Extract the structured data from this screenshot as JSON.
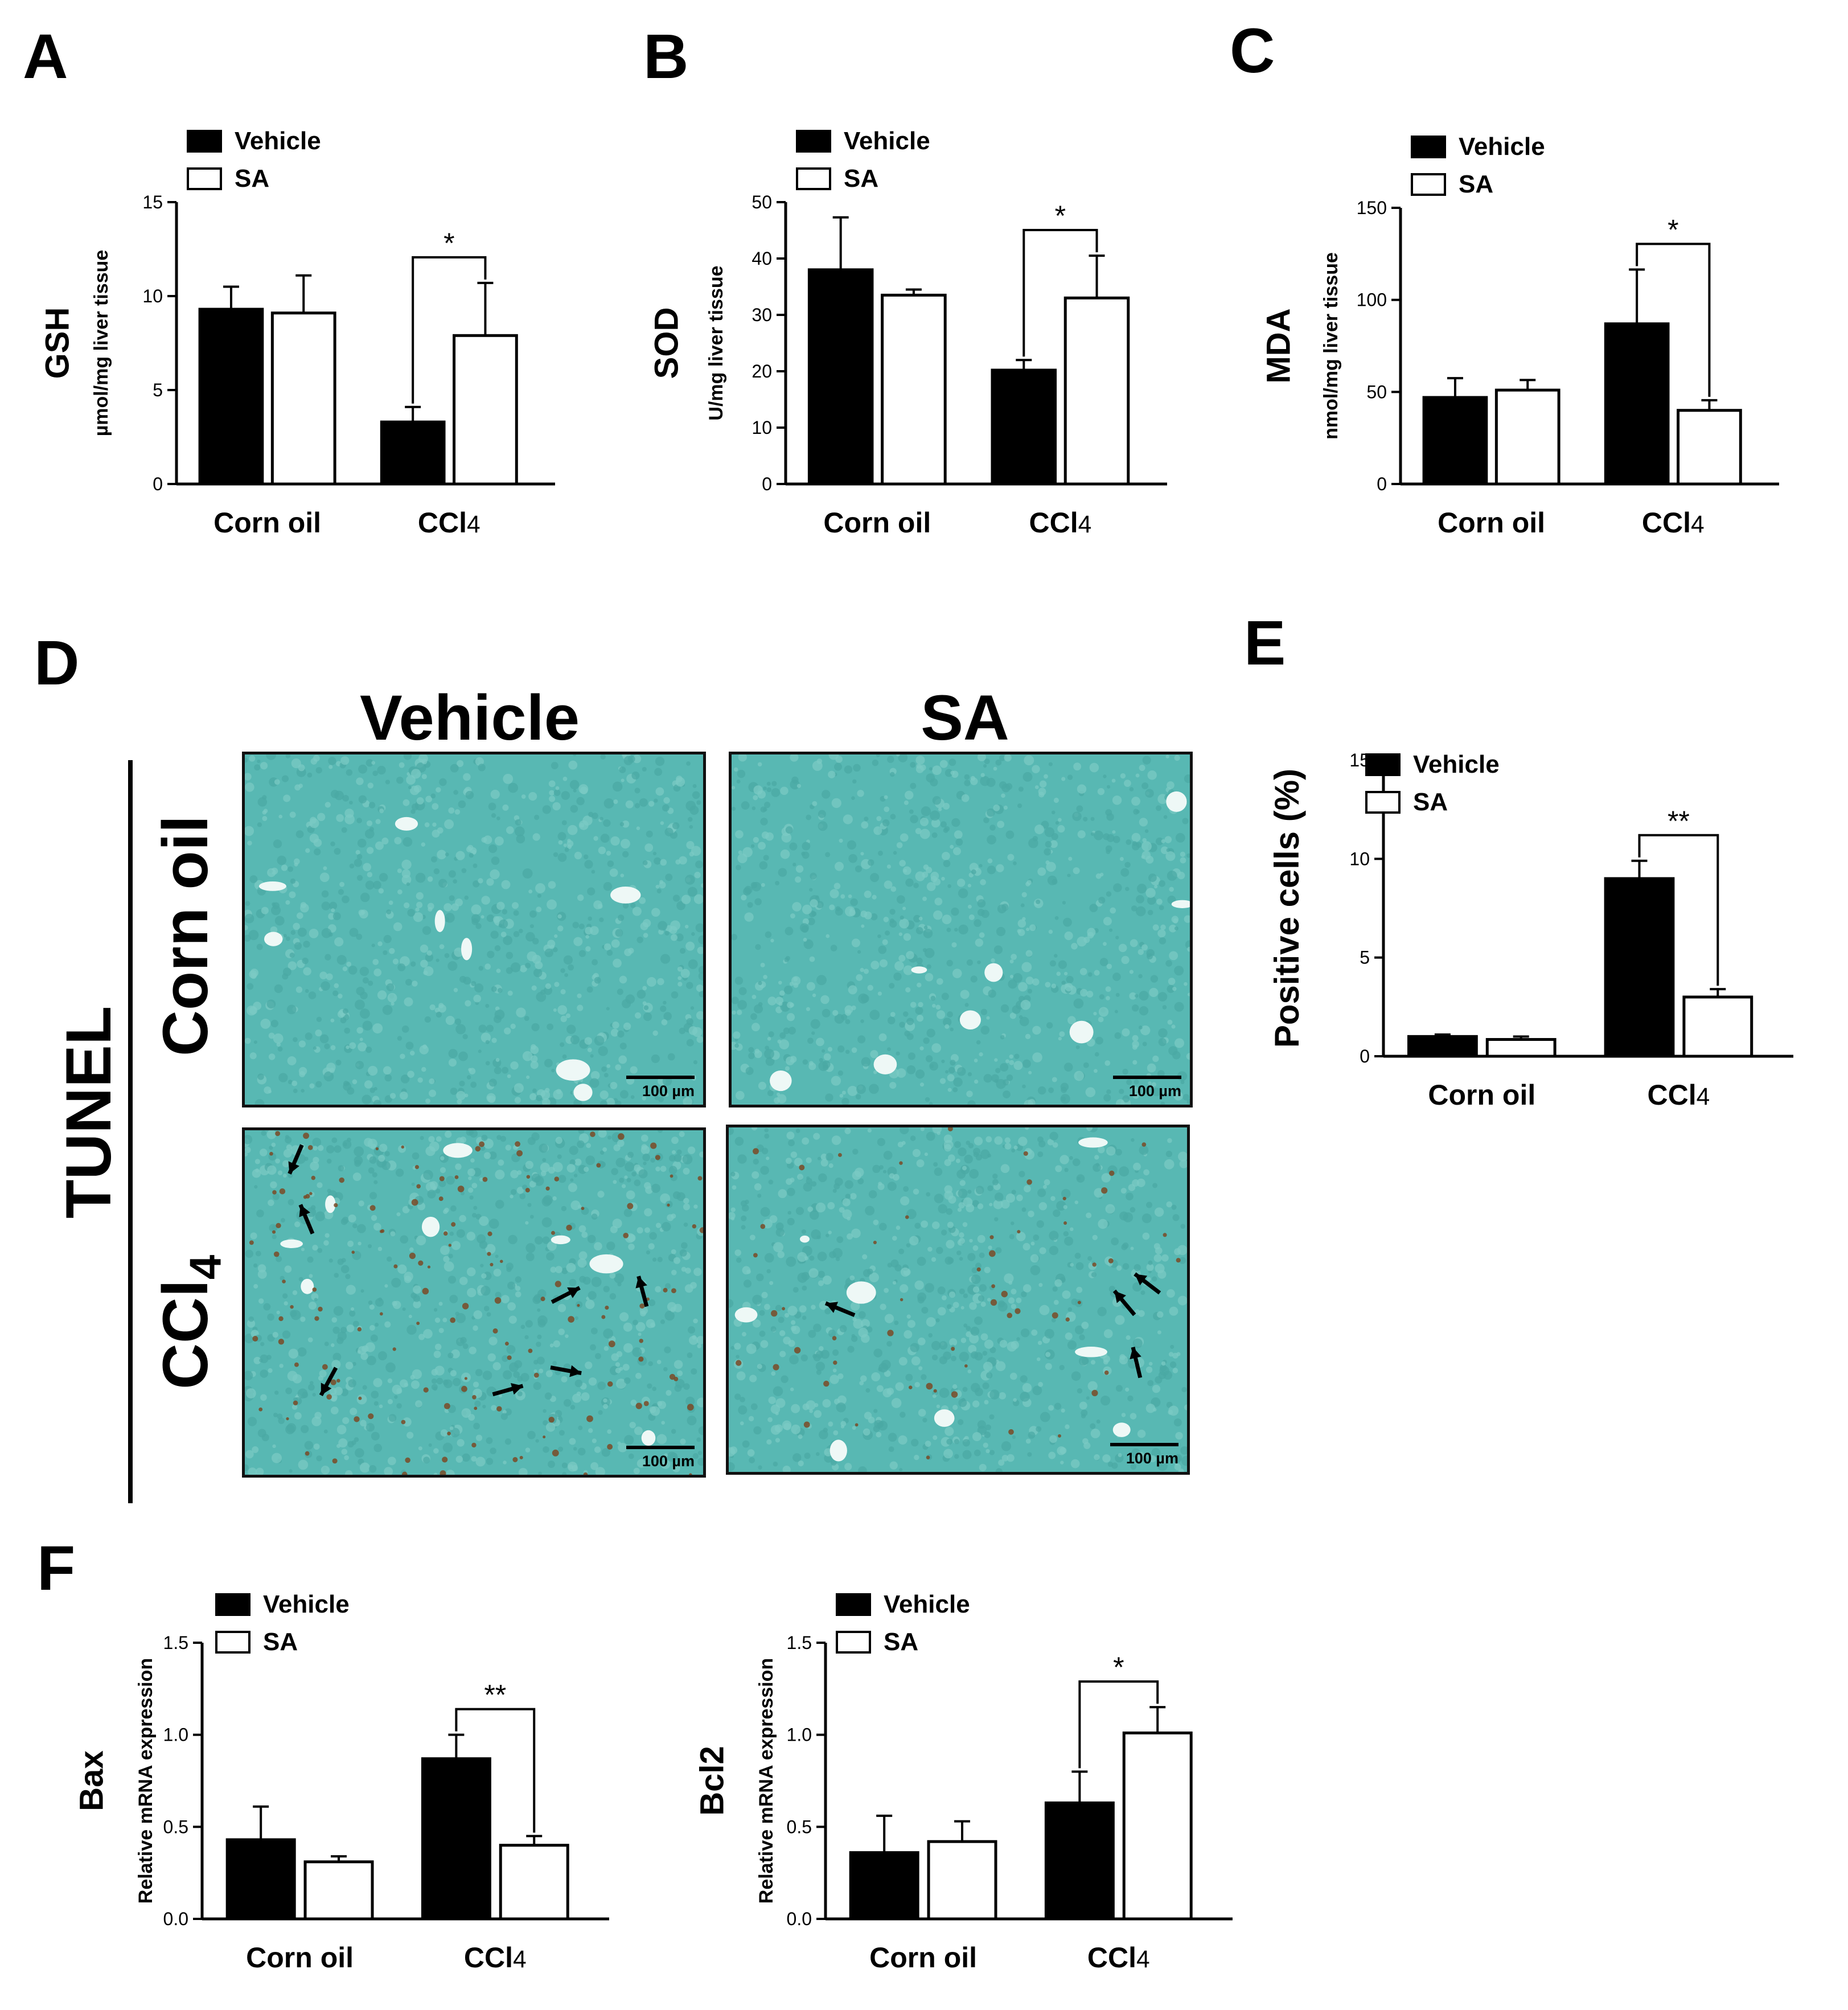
{
  "panels": {
    "A": "A",
    "B": "B",
    "C": "C",
    "D": "D",
    "E": "E",
    "F": "F"
  },
  "legend": {
    "vehicle": "Vehicle",
    "sa": "SA"
  },
  "colors": {
    "vehicle": "#000000",
    "sa": "#ffffff",
    "stain": "#58b8b3",
    "apoptotic": "#7a4a26"
  },
  "tunel": {
    "title": "TUNEL",
    "col_labels": [
      "Vehicle",
      "SA"
    ],
    "row_labels": [
      "Corn oil",
      "CCl4"
    ],
    "row_label_ccl4_base": "CCl",
    "row_label_ccl4_sub": "4",
    "scale_bar": "100 µm"
  },
  "chart_data": [
    {
      "id": "A",
      "type": "bar",
      "categories": [
        "Corn oil",
        "CCl4"
      ],
      "ylabel_main": "GSH",
      "ylabel_sub": "µmol/mg liver tissue",
      "ylim": [
        0,
        15
      ],
      "yticks": [
        "0",
        "5",
        "10",
        "15"
      ],
      "series": [
        {
          "name": "Vehicle",
          "values": [
            9.3,
            3.3
          ],
          "errors": [
            1.2,
            0.8
          ]
        },
        {
          "name": "SA",
          "values": [
            9.1,
            7.9
          ],
          "errors": [
            2.0,
            2.8
          ]
        }
      ],
      "significance": [
        {
          "category": 1,
          "label": "*"
        }
      ]
    },
    {
      "id": "B",
      "type": "bar",
      "categories": [
        "Corn oil",
        "CCl4"
      ],
      "ylabel_main": "SOD",
      "ylabel_sub": "U/mg liver tissue",
      "ylim": [
        0,
        50
      ],
      "yticks": [
        "0",
        "10",
        "20",
        "30",
        "40",
        "50"
      ],
      "series": [
        {
          "name": "Vehicle",
          "values": [
            38,
            20.2
          ],
          "errors": [
            9.3,
            1.8
          ]
        },
        {
          "name": "SA",
          "values": [
            33.5,
            33
          ],
          "errors": [
            1.0,
            7.5
          ]
        }
      ],
      "significance": [
        {
          "category": 1,
          "label": "*"
        }
      ]
    },
    {
      "id": "C",
      "type": "bar",
      "categories": [
        "Corn oil",
        "CCl4"
      ],
      "ylabel_main": "MDA",
      "ylabel_sub": "nmol/mg liver tissue",
      "ylim": [
        0,
        150
      ],
      "yticks": [
        "0",
        "50",
        "100",
        "150"
      ],
      "series": [
        {
          "name": "Vehicle",
          "values": [
            47,
            87
          ],
          "errors": [
            10.5,
            29.5
          ]
        },
        {
          "name": "SA",
          "values": [
            51,
            40
          ],
          "errors": [
            5.5,
            5.5
          ]
        }
      ],
      "significance": [
        {
          "category": 1,
          "label": "*"
        }
      ]
    },
    {
      "id": "E",
      "type": "bar",
      "categories": [
        "Corn oil",
        "CCl4"
      ],
      "ylabel_main": "Positive cells (%)",
      "ylabel_sub": "",
      "ylim": [
        0,
        15
      ],
      "yticks": [
        "0",
        "5",
        "10",
        "15"
      ],
      "series": [
        {
          "name": "Vehicle",
          "values": [
            1.0,
            9.0
          ],
          "errors": [
            0.1,
            0.9
          ]
        },
        {
          "name": "SA",
          "values": [
            0.85,
            3.0
          ],
          "errors": [
            0.15,
            0.4
          ]
        }
      ],
      "significance": [
        {
          "category": 1,
          "label": "**"
        }
      ]
    },
    {
      "id": "F-Bax",
      "type": "bar",
      "categories": [
        "Corn oil",
        "CCl4"
      ],
      "ylabel_main": "Bax",
      "ylabel_sub": "Relative mRNA expression",
      "ylim": [
        0,
        1.5
      ],
      "yticks": [
        "0.0",
        "0.5",
        "1.0",
        "1.5"
      ],
      "series": [
        {
          "name": "Vehicle",
          "values": [
            0.43,
            0.87
          ],
          "errors": [
            0.18,
            0.13
          ]
        },
        {
          "name": "SA",
          "values": [
            0.31,
            0.4
          ],
          "errors": [
            0.03,
            0.05
          ]
        }
      ],
      "significance": [
        {
          "category": 1,
          "label": "**"
        }
      ]
    },
    {
      "id": "F-Bcl2",
      "type": "bar",
      "categories": [
        "Corn oil",
        "CCl4"
      ],
      "ylabel_main": "Bcl2",
      "ylabel_sub": "Relative mRNA expression",
      "ylim": [
        0,
        1.5
      ],
      "yticks": [
        "0.0",
        "0.5",
        "1.0",
        "1.5"
      ],
      "series": [
        {
          "name": "Vehicle",
          "values": [
            0.36,
            0.63
          ],
          "errors": [
            0.2,
            0.17
          ]
        },
        {
          "name": "SA",
          "values": [
            0.42,
            1.01
          ],
          "errors": [
            0.11,
            0.14
          ]
        }
      ],
      "significance": [
        {
          "category": 1,
          "label": "*"
        }
      ]
    }
  ]
}
